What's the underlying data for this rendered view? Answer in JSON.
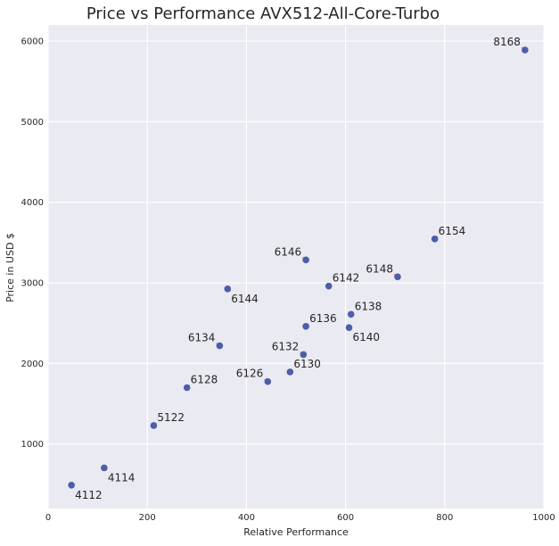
{
  "chart_data": {
    "type": "scatter",
    "title": "Price vs Performance AVX512-All-Core-Turbo",
    "xlabel": "Relative Performance",
    "ylabel": "Price in USD $",
    "xlim": [
      0,
      1000
    ],
    "ylim": [
      200,
      6200
    ],
    "xticks": [
      0,
      200,
      400,
      600,
      800,
      1000
    ],
    "yticks": [
      1000,
      2000,
      3000,
      4000,
      5000,
      6000
    ],
    "grid": true,
    "style": {
      "background": "#eaeaf2",
      "grid_color": "#ffffff",
      "marker_color": "#4c5ea8",
      "leader_color": "#e8807a"
    },
    "points": [
      {
        "label": "4112",
        "x": 47,
        "y": 490,
        "label_pos": "below-right"
      },
      {
        "label": "4114",
        "x": 113,
        "y": 705,
        "label_pos": "below-right"
      },
      {
        "label": "5122",
        "x": 213,
        "y": 1230,
        "label_pos": "above-right"
      },
      {
        "label": "6128",
        "x": 280,
        "y": 1700,
        "label_pos": "above-right"
      },
      {
        "label": "6126",
        "x": 443,
        "y": 1775,
        "label_pos": "above-left"
      },
      {
        "label": "6130",
        "x": 488,
        "y": 1895,
        "label_pos": "above-right"
      },
      {
        "label": "6132",
        "x": 515,
        "y": 2110,
        "label_pos": "above-left"
      },
      {
        "label": "6134",
        "x": 346,
        "y": 2220,
        "label_pos": "above-left"
      },
      {
        "label": "6136",
        "x": 520,
        "y": 2460,
        "label_pos": "above-right"
      },
      {
        "label": "6138",
        "x": 611,
        "y": 2610,
        "label_pos": "above-right"
      },
      {
        "label": "6140",
        "x": 607,
        "y": 2445,
        "label_pos": "below-right"
      },
      {
        "label": "6142",
        "x": 566,
        "y": 2960,
        "label_pos": "above-right"
      },
      {
        "label": "6144",
        "x": 362,
        "y": 2925,
        "label_pos": "below-right"
      },
      {
        "label": "6146",
        "x": 520,
        "y": 3285,
        "label_pos": "above-left"
      },
      {
        "label": "6148",
        "x": 705,
        "y": 3075,
        "label_pos": "above-left"
      },
      {
        "label": "6154",
        "x": 780,
        "y": 3545,
        "label_pos": "above-right"
      },
      {
        "label": "8168",
        "x": 962,
        "y": 5890,
        "label_pos": "above-left"
      }
    ]
  }
}
